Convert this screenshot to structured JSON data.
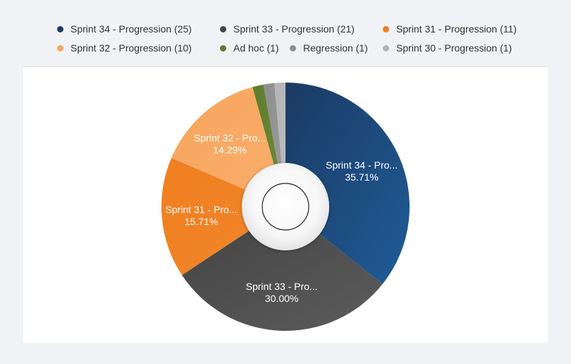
{
  "colors": {
    "background": "#f1f2f5",
    "panel": "#ffffff",
    "label_text": "#ffffff"
  },
  "legend": {
    "items": [
      {
        "label": "Sprint 34 - Progression (25)",
        "color": "#1b3a63"
      },
      {
        "label": "Sprint 33 - Progression (21)",
        "color": "#444444"
      },
      {
        "label": "Sprint 31 - Progression (11)",
        "color": "#f07f20"
      },
      {
        "label": "Sprint 32 - Progression (10)",
        "color": "#f7a55d"
      },
      {
        "label": "Ad hoc (1)",
        "color": "#5f7c2f"
      },
      {
        "label": "Regression (1)",
        "color": "#8e8e8e"
      },
      {
        "label": "Sprint 30 - Progression (1)",
        "color": "#b4b4b4"
      }
    ]
  },
  "chart_data": {
    "type": "pie",
    "style": "donut",
    "legend_position": "top",
    "slices": [
      {
        "name": "Sprint 34 - Progression",
        "value": 25,
        "percent": "35.71%",
        "label": "Sprint 34 - Pro...",
        "color": "#1b3a63",
        "color_light": "#1f5c97"
      },
      {
        "name": "Sprint 33 - Progression",
        "value": 21,
        "percent": "30.00%",
        "label": "Sprint 33 - Pro...",
        "color": "#444444",
        "color_light": "#5c5c5c"
      },
      {
        "name": "Sprint 31 - Progression",
        "value": 11,
        "percent": "15.71%",
        "label": "Sprint 31 - Pro...",
        "color": "#f07f20",
        "color_light": "#f0862a"
      },
      {
        "name": "Sprint 32 - Progression",
        "value": 10,
        "percent": "14.29%",
        "label": "Sprint 32 - Pro...",
        "color": "#f7a55d",
        "color_light": "#f8ad6a"
      },
      {
        "name": "Ad hoc",
        "value": 1,
        "percent": "1.43%",
        "label": "",
        "color": "#5f7c2f",
        "color_light": "#6b8a35"
      },
      {
        "name": "Regression",
        "value": 1,
        "percent": "1.43%",
        "label": "",
        "color": "#8e8e8e",
        "color_light": "#9a9a9a"
      },
      {
        "name": "Sprint 30 - Progression",
        "value": 1,
        "percent": "1.43%",
        "label": "",
        "color": "#b4b4b4",
        "color_light": "#bcbcbc"
      }
    ]
  }
}
